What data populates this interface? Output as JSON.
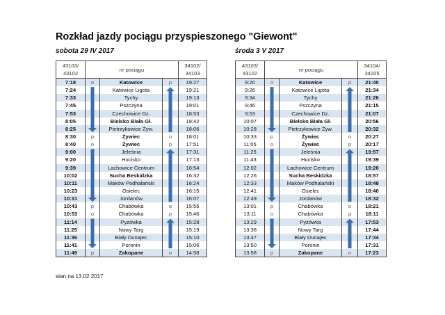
{
  "title": "Rozkład jazdy pociągu przyspieszonego \"Giewont\"",
  "footer": "stan na 13.02.2017",
  "colors": {
    "shade": "#dbe5f1",
    "arrow": "#3b6ea8"
  },
  "stations": [
    {
      "name": "Katowice",
      "bold": true,
      "shaded": true,
      "mk_a": "o",
      "mk_b": "p"
    },
    {
      "name": "Katowice Ligota",
      "bold": false,
      "shaded": false,
      "mk_a": "",
      "mk_b": ""
    },
    {
      "name": "Tychy",
      "bold": false,
      "shaded": true,
      "mk_a": "",
      "mk_b": ""
    },
    {
      "name": "Pszczyna",
      "bold": false,
      "shaded": false,
      "mk_a": "",
      "mk_b": ""
    },
    {
      "name": "Czechowice Dz.",
      "bold": false,
      "shaded": true,
      "mk_a": "",
      "mk_b": ""
    },
    {
      "name": "Bielsko Biała Gł.",
      "bold": true,
      "shaded": false,
      "mk_a": "",
      "mk_b": ""
    },
    {
      "name": "Pietrzykowice Żyw.",
      "bold": false,
      "shaded": true,
      "mk_a": "",
      "mk_b": ""
    },
    {
      "name": "Żywiec",
      "bold": true,
      "shaded": false,
      "mk_a": "p",
      "mk_b": "o"
    },
    {
      "name": "Żywiec",
      "bold": true,
      "shaded": false,
      "mk_a": "o",
      "mk_b": "p"
    },
    {
      "name": "Jeleśnia",
      "bold": false,
      "shaded": true,
      "mk_a": "",
      "mk_b": ""
    },
    {
      "name": "Hucisko",
      "bold": false,
      "shaded": false,
      "mk_a": "",
      "mk_b": ""
    },
    {
      "name": "Lachowice Centrum",
      "bold": false,
      "shaded": true,
      "mk_a": "",
      "mk_b": ""
    },
    {
      "name": "Sucha Beskidzka",
      "bold": true,
      "shaded": false,
      "mk_a": "",
      "mk_b": ""
    },
    {
      "name": "Maków Podhalański",
      "bold": false,
      "shaded": true,
      "mk_a": "",
      "mk_b": ""
    },
    {
      "name": "Osielec",
      "bold": false,
      "shaded": false,
      "mk_a": "",
      "mk_b": ""
    },
    {
      "name": "Jordanów",
      "bold": false,
      "shaded": true,
      "mk_a": "",
      "mk_b": ""
    },
    {
      "name": "Chabówka",
      "bold": false,
      "shaded": false,
      "mk_a": "p",
      "mk_b": "o"
    },
    {
      "name": "Chabówka",
      "bold": false,
      "shaded": false,
      "mk_a": "o",
      "mk_b": "p"
    },
    {
      "name": "Pyzówka",
      "bold": false,
      "shaded": true,
      "mk_a": "",
      "mk_b": ""
    },
    {
      "name": "Nowy Targ",
      "bold": false,
      "shaded": false,
      "mk_a": "",
      "mk_b": ""
    },
    {
      "name": "Biały Dunajec",
      "bold": false,
      "shaded": true,
      "mk_a": "",
      "mk_b": ""
    },
    {
      "name": "Poronin",
      "bold": false,
      "shaded": false,
      "mk_a": "",
      "mk_b": ""
    },
    {
      "name": "Zakopane",
      "bold": true,
      "shaded": true,
      "mk_a": "p",
      "mk_b": "o"
    }
  ],
  "tables": [
    {
      "date": "sobota 29 IV 2017",
      "header_left": [
        "43103/",
        "43102"
      ],
      "header_mid": "nr pociągu",
      "header_right": [
        "34102/",
        "34103"
      ],
      "bold_left": true,
      "bold_right": false,
      "times_out": [
        "7:18",
        "7:24",
        "7:33",
        "7:45",
        "7:53",
        "8:05",
        "8:25",
        "8:30",
        "8:40",
        "9:00",
        "9:20",
        "9:39",
        "10:02",
        "10:11",
        "10:23",
        "10:31",
        "10:43",
        "10:53",
        "11:14",
        "11:25",
        "11:36",
        "11:41",
        "11:49"
      ],
      "times_back": [
        "19:27",
        "19:21",
        "19:13",
        "19:01",
        "18:53",
        "18:42",
        "18:06",
        "18:01",
        "17:51",
        "17:31",
        "17:13",
        "16:54",
        "16:32",
        "16:24",
        "16:15",
        "16:07",
        "15:56",
        "15:46",
        "15:28",
        "15:19",
        "15:10",
        "15:06",
        "14:58"
      ]
    },
    {
      "date": "środa 3 V 2017",
      "header_left": [
        "43103/",
        "43102"
      ],
      "header_mid": "nr pociągu",
      "header_right": [
        "34104/",
        "34105"
      ],
      "bold_left": false,
      "bold_right": true,
      "times_out": [
        "9:20",
        "9:26",
        "9:34",
        "9:46",
        "9:53",
        "10:07",
        "10:28",
        "10:33",
        "11:05",
        "11:25",
        "11:43",
        "12:02",
        "12:26",
        "12:33",
        "12:41",
        "12:49",
        "13:01",
        "13:11",
        "13:29",
        "13:38",
        "13:47",
        "13:50",
        "13:58"
      ],
      "times_back": [
        "21:40",
        "21:34",
        "21:26",
        "21:15",
        "21:07",
        "20:56",
        "20:32",
        "20:27",
        "20:17",
        "19:57",
        "19:39",
        "19:20",
        "18:57",
        "18:48",
        "18:40",
        "18:32",
        "18:21",
        "18:11",
        "17:53",
        "17:44",
        "17:34",
        "17:31",
        "17:23"
      ]
    }
  ]
}
